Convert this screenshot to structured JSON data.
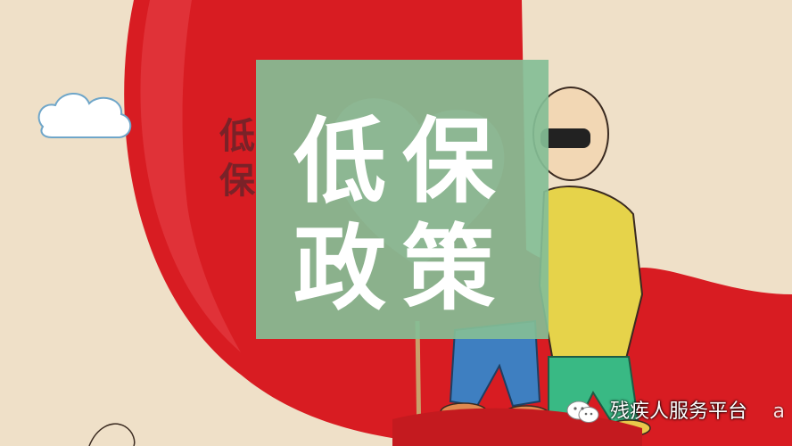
{
  "overlay": {
    "line1": "低保",
    "line2": "政策"
  },
  "side_text": "低保",
  "watermark": {
    "text": "残疾人服务平台",
    "tail": "a",
    "icon": "wechat-icon"
  },
  "colors": {
    "background": "#efe0c8",
    "red": "#d81c22",
    "overlay_green": "#84be96",
    "skin": "#f2d7b4",
    "yellow_shirt": "#e6d34a",
    "green_pants": "#39b984",
    "blue_pants": "#3e7fc1"
  }
}
